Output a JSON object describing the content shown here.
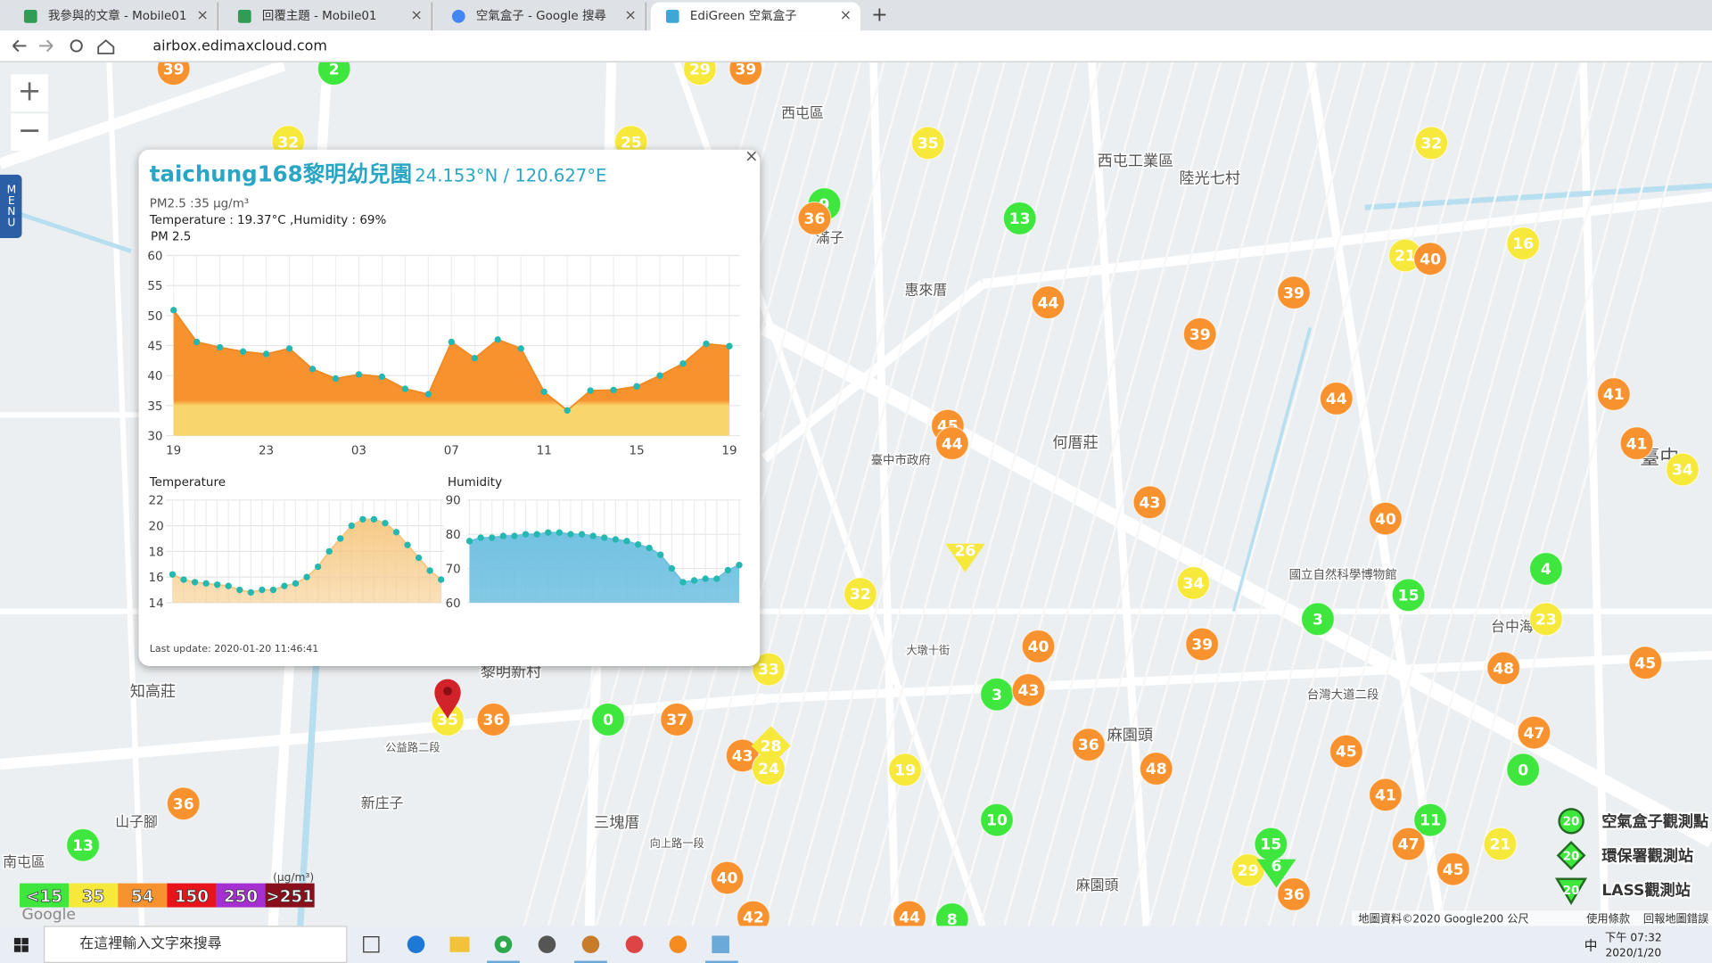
{
  "browser": {
    "tabs": [
      "我參與的文章 - Mobile01",
      "回覆主題 - Mobile01",
      "空氣盒子 - Google 搜尋",
      "EdiGreen 空氣盒子"
    ],
    "new_tab": "+",
    "url": "airbox.edimaxcloud.com"
  },
  "menu": "MENU",
  "zoom": [
    "+",
    "−"
  ],
  "map": {
    "labels": [
      "西屯區",
      "西屯工業區",
      "陸光七村",
      "惠來厝",
      "滿子",
      "何厝莊",
      "臺中",
      "黎明新村",
      "知高莊",
      "三塊厝",
      "新庄子",
      "山子腳",
      "南屯區",
      "麻園頭",
      "麻園頭",
      "臺中市政府",
      "國立自然科學博物館",
      "台中海",
      "公益路二段",
      "台灣大道二段",
      "向上路一段",
      "大墩十街"
    ],
    "markers": [
      39,
      2,
      32,
      25,
      29,
      39,
      35,
      9,
      36,
      13,
      44,
      39,
      39,
      21,
      40,
      16,
      32,
      44,
      41,
      41,
      34,
      45,
      44,
      43,
      40,
      34,
      32,
      15,
      4,
      3,
      23,
      39,
      40,
      48,
      45,
      33,
      3,
      43,
      35,
      36,
      0,
      37,
      43,
      24,
      36,
      45,
      47,
      0,
      19,
      48,
      36,
      10,
      41,
      11,
      13,
      15,
      47,
      21,
      29,
      45,
      36,
      40,
      42,
      44,
      8
    ],
    "epa_markers": [
      28
    ],
    "lass_markers": [
      26,
      6
    ]
  },
  "legend": {
    "unit": "(μg/m³)",
    "levels": [
      {
        "label": "<15",
        "color": "#3ee63e"
      },
      {
        "label": "35",
        "color": "#f7e83c"
      },
      {
        "label": "54",
        "color": "#f7922f"
      },
      {
        "label": "150",
        "color": "#e8141c"
      },
      {
        "label": "250",
        "color": "#a52fd0"
      },
      {
        "label": ">251",
        "color": "#8a0f1c"
      }
    ]
  },
  "station_legend": [
    {
      "icon": "20",
      "label": "空氣盒子觀測點"
    },
    {
      "icon": "20",
      "label": "環保署觀測站"
    },
    {
      "icon": "20",
      "label": "LASS觀測站"
    }
  ],
  "popup": {
    "close": "×",
    "title": "taichung168黎明幼兒園",
    "coords": "24.153°N / 120.627°E",
    "pm_line": "PM2.5 :35 μg/m³",
    "env_line": "Temperature : 19.37°C ,Humidity : 69%",
    "last_update": "Last update: 2020-01-20 11:46:41",
    "pm": {
      "title": "PM 2.5",
      "categories": [
        "19",
        null,
        null,
        null,
        "23",
        null,
        null,
        null,
        "03",
        null,
        null,
        null,
        "07",
        null,
        null,
        null,
        "11",
        null,
        null,
        null,
        "15",
        null,
        null,
        null,
        "19"
      ],
      "values": [
        50.9,
        45.6,
        44.7,
        44,
        43.6,
        44.5,
        41.1,
        39.5,
        40.2,
        39.8,
        37.8,
        36.9,
        45.6,
        42.9,
        46,
        44.5,
        37.3,
        34.2,
        37.5,
        37.6,
        38.2,
        40,
        42,
        45.3,
        44.9
      ],
      "ylim": [
        30,
        60
      ],
      "yticks": [
        30,
        35,
        40,
        45,
        50,
        55,
        60
      ],
      "color": "#f7922f",
      "band_color": "#f9d66b",
      "point_color": "#25b8b0"
    },
    "temperature": {
      "title": "Temperature",
      "values": [
        16.2,
        15.8,
        15.6,
        15.5,
        15.4,
        15.3,
        15,
        14.8,
        15,
        15,
        15.3,
        15.5,
        16,
        16.8,
        18,
        19,
        20,
        20.5,
        20.5,
        20.2,
        19.5,
        18.5,
        17.5,
        16.5,
        15.8
      ],
      "ylim": [
        14,
        22
      ],
      "yticks": [
        14,
        16,
        18,
        20,
        22
      ],
      "color": "#f6c67e",
      "point_color": "#25b8b0"
    },
    "humidity": {
      "title": "Humidity",
      "values": [
        78,
        79,
        79,
        79.5,
        79.5,
        80,
        80,
        80.5,
        80.5,
        80,
        80,
        79.5,
        79,
        78.5,
        78,
        77,
        76,
        74,
        70,
        66,
        66.5,
        67,
        67,
        69.5,
        71
      ],
      "ylim": [
        60,
        90
      ],
      "yticks": [
        60,
        70,
        80,
        90
      ],
      "color": "#6cbfe0",
      "point_color": "#25b8b0"
    }
  },
  "attribution": {
    "google": "Google",
    "data": "地圖資料©2020 Google",
    "scale": "200 公尺",
    "terms": "使用條款",
    "report": "回報地圖錯誤"
  },
  "taskbar": {
    "search": "在這裡輸入文字來搜尋",
    "ime": "中",
    "time": "下午 07:32",
    "date": "2020/1/20"
  }
}
